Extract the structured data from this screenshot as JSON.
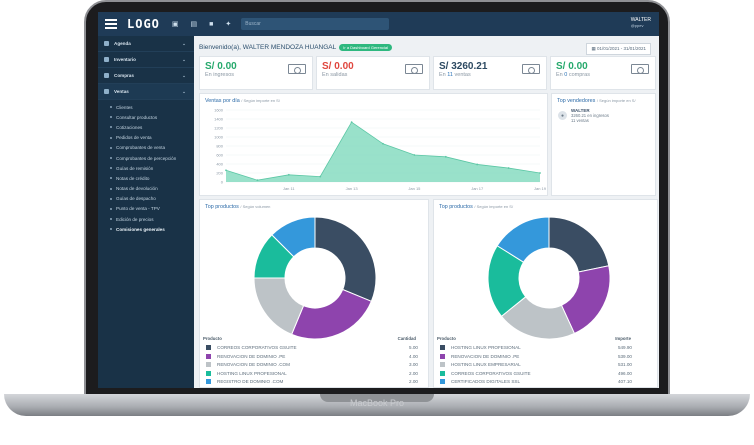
{
  "topbar": {
    "logo": "LOGO",
    "search_placeholder": "Buscar",
    "user_name": "WALTER",
    "user_role": "@ppev"
  },
  "sidebar": {
    "items": [
      {
        "label": "Agenda"
      },
      {
        "label": "Inventario"
      },
      {
        "label": "Compras"
      },
      {
        "label": "Ventas"
      }
    ],
    "sub_items": [
      {
        "label": "Clientes"
      },
      {
        "label": "Consultar productos"
      },
      {
        "label": "Cotizaciones"
      },
      {
        "label": "Pedidos de venta"
      },
      {
        "label": "Comprobantes de venta"
      },
      {
        "label": "Comprobantes de percepción"
      },
      {
        "label": "Guías de remisión"
      },
      {
        "label": "Notas de crédito"
      },
      {
        "label": "Notas de devolución"
      },
      {
        "label": "Guías de despacho"
      },
      {
        "label": "Punto de venta - TPV"
      },
      {
        "label": "Edición de precios"
      },
      {
        "label": "Comisiones generales"
      }
    ]
  },
  "header": {
    "welcome": "Bienvenido(a), WALTER MENDOZA HUANGAL",
    "pill": "Ir a Dashboard Gerencial",
    "date_range": "01/01/2021 - 31/01/2021"
  },
  "stats": [
    {
      "value": "S/ 0.00",
      "caption": "En ingresos",
      "count": "",
      "suffix": "",
      "color": "#26a96c"
    },
    {
      "value": "S/ 0.00",
      "caption": "En salidas",
      "count": "",
      "suffix": "",
      "color": "#e0463e"
    },
    {
      "value": "S/ 3260.21",
      "caption": "En ",
      "count": "11",
      "suffix": " ventas",
      "color": "#2c4961"
    },
    {
      "value": "S/ 0.00",
      "caption": "En ",
      "count": "0",
      "suffix": " compras",
      "color": "#26a96c"
    }
  ],
  "sales_chart": {
    "title": "Ventas por día",
    "subtitle": "/ Según importe en S/",
    "chart_data": {
      "type": "area",
      "x": [
        "Jan 09",
        "Jan 10",
        "Jan 11",
        "Jan 12",
        "Jan 13",
        "Jan 14",
        "Jan 15",
        "Jan 16",
        "Jan 17",
        "Jan 18",
        "Jan 19"
      ],
      "values": [
        260,
        40,
        160,
        120,
        1330,
        850,
        600,
        560,
        390,
        310,
        200
      ],
      "ylim": [
        0,
        1600
      ],
      "yticks": [
        0,
        200,
        400,
        600,
        800,
        1000,
        1200,
        1400,
        1600
      ],
      "xtick_labels": [
        "Jan 11",
        "Jan 13",
        "Jan 15",
        "Jan 17",
        "Jan 19"
      ],
      "color": "#7fd9bd",
      "grid": true
    }
  },
  "top_sellers": {
    "title": "Top vendedores",
    "subtitle": "/ Según importe en S/",
    "name": "WALTER",
    "amount": "3260.21 en ingresos",
    "count": "11 ventas"
  },
  "top_products_qty": {
    "title": "Top productos",
    "subtitle": "/ Según volumen",
    "col_product": "Producto",
    "col_value": "Cantidad",
    "chart_data": {
      "type": "pie",
      "labels": [
        "CORREOS CORPORATIVOS GSUITE",
        "RENOVACION DE DOMINIO .PE",
        "RENOVACION DE DOMINIO .COM",
        "HOSTING LINUX PROFESIONAL",
        "REGISTRO DE DOMINIO .COM"
      ],
      "values": [
        5.0,
        4.0,
        3.0,
        2.0,
        2.0
      ],
      "value_labels": [
        "5.00",
        "4.00",
        "3.00",
        "2.00",
        "2.00"
      ],
      "colors": [
        "#3a4d63",
        "#8e44ad",
        "#bdc3c7",
        "#1abc9c",
        "#3498db"
      ]
    }
  },
  "top_products_amount": {
    "title": "Top productos",
    "subtitle": "/ Según importe en S/",
    "col_product": "Producto",
    "col_value": "Importe",
    "chart_data": {
      "type": "pie",
      "labels": [
        "HOSTING LINUX PROFESIONAL",
        "RENOVACION DE DOMINIO .PE",
        "HOSTING LINUX EMPRESARIAL",
        "CORREOS CORPORATIVOS GSUITE",
        "CERTIFICADOS DIGITALES SSL"
      ],
      "values": [
        549.9,
        539.0,
        531.0,
        496.0,
        407.1
      ],
      "value_labels": [
        "549.90",
        "539.00",
        "531.00",
        "496.00",
        "407.10"
      ],
      "colors": [
        "#3a4d63",
        "#8e44ad",
        "#bdc3c7",
        "#1abc9c",
        "#3498db"
      ]
    }
  },
  "device_label": "MacBook Pro"
}
